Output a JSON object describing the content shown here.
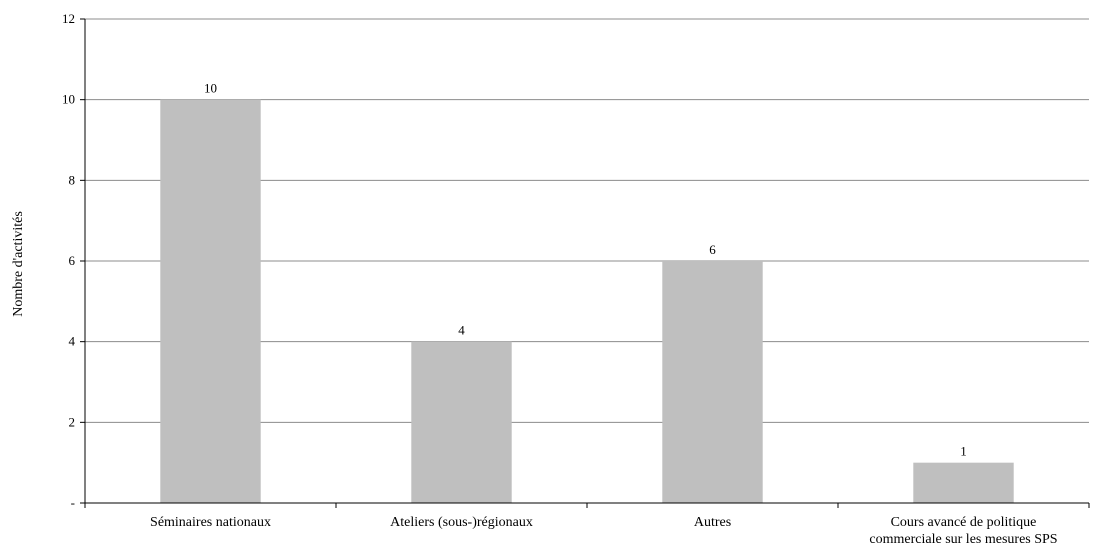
{
  "colors": {
    "bar": "#bfbfbf",
    "grid": "#8c8c8c",
    "axis": "#000000"
  },
  "chart_data": {
    "type": "bar",
    "title": "",
    "xlabel": "",
    "ylabel": "Nombre d'activités",
    "ylim": [
      0,
      12
    ],
    "yticks": [
      0,
      2,
      4,
      6,
      8,
      10,
      12
    ],
    "ytick_labels": [
      "-",
      "2",
      "4",
      "6",
      "8",
      "10",
      "12"
    ],
    "grid": true,
    "legend": "none",
    "categories": [
      [
        "Séminaires nationaux"
      ],
      [
        "Ateliers (sous-)régionaux"
      ],
      [
        "Autres"
      ],
      [
        "Cours avancé de politique",
        "commerciale sur les mesures SPS"
      ]
    ],
    "values": [
      10,
      4,
      6,
      1
    ],
    "data_labels": [
      "10",
      "4",
      "6",
      "1"
    ]
  }
}
